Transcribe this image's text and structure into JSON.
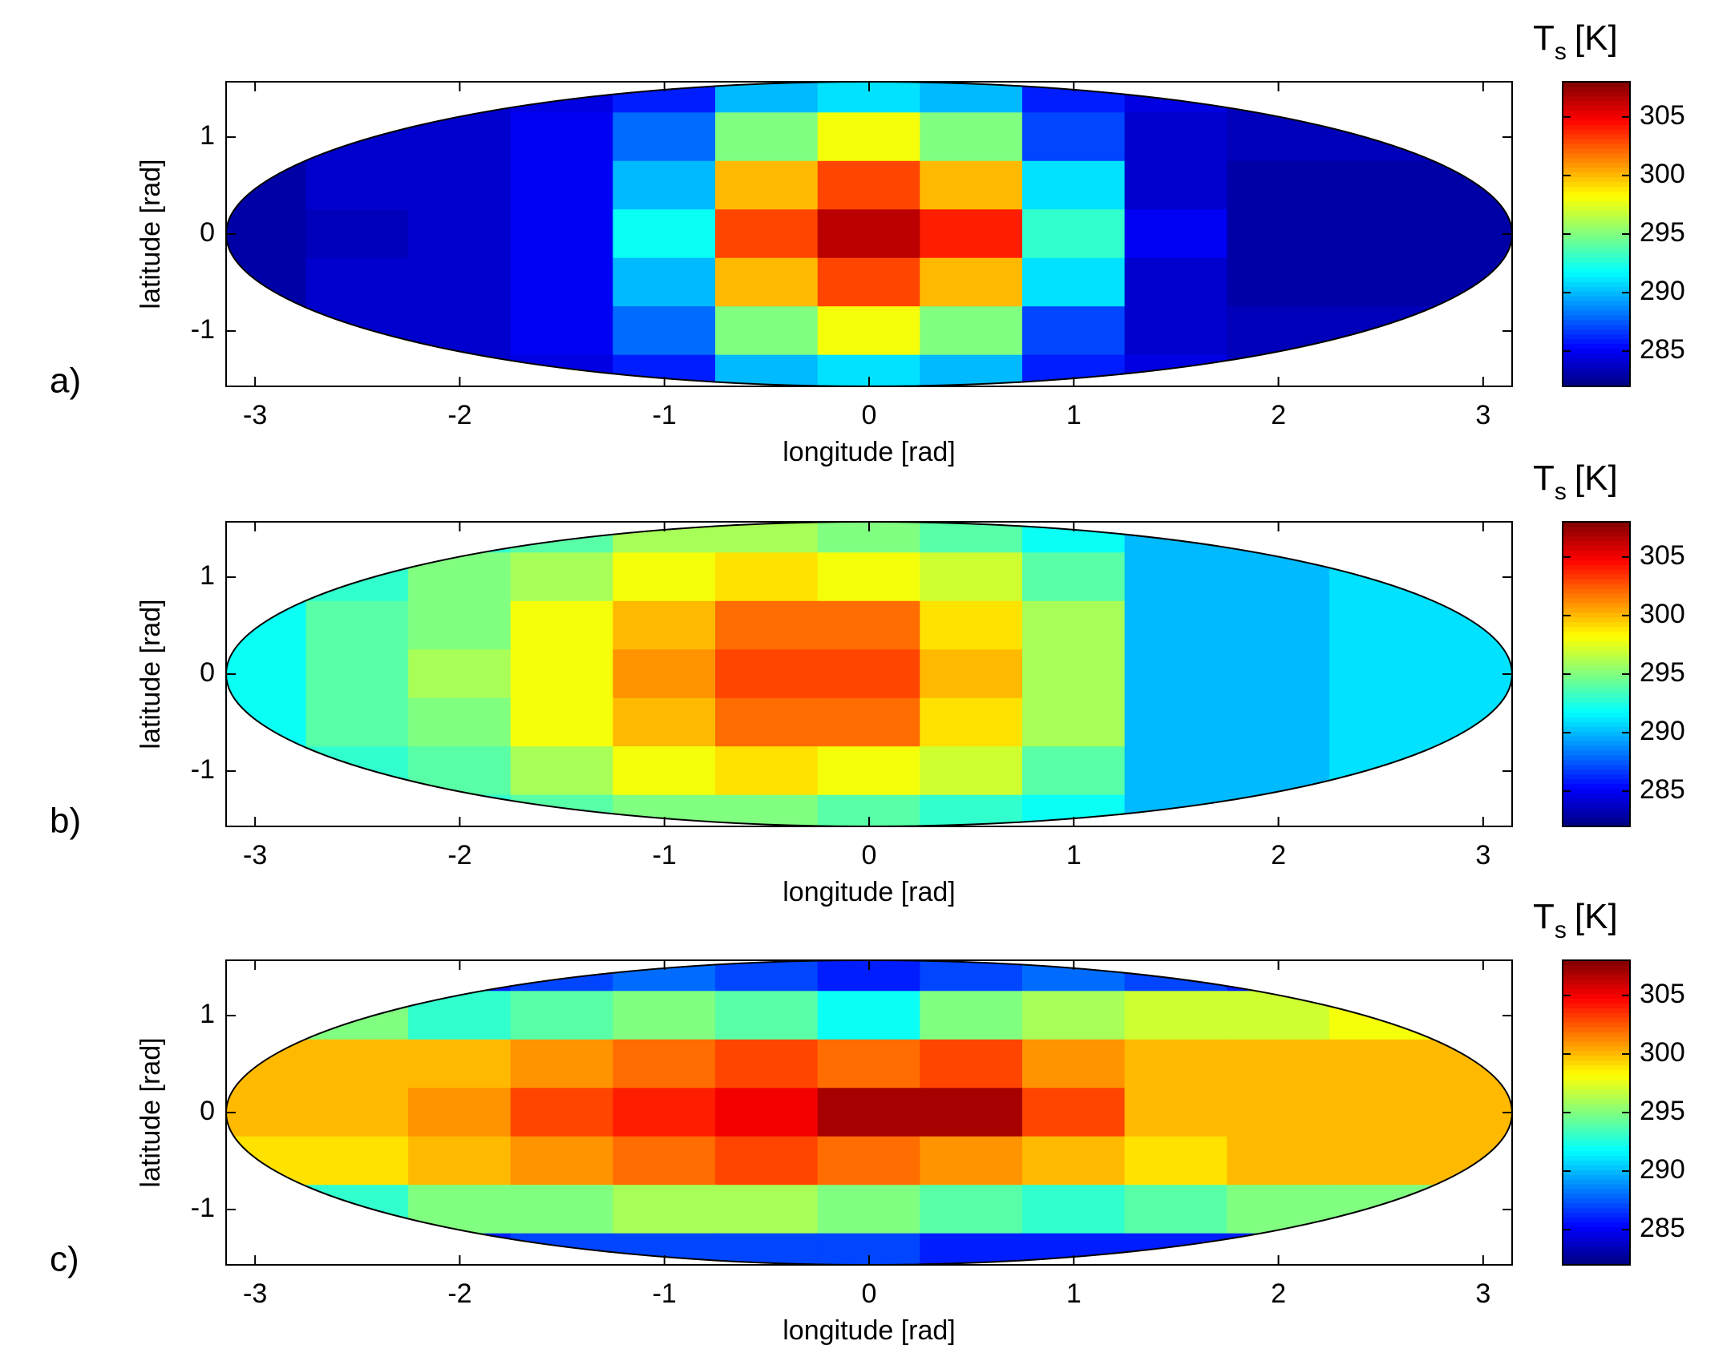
{
  "chart_data": [
    {
      "type": "contour",
      "panel_label": "a)",
      "xlabel": "longitude [rad]",
      "ylabel": "latitude [rad]",
      "colorbar_label": "T",
      "colorbar_label_subscript": "s",
      "colorbar_label_unit": "[K]",
      "colormap": "jet",
      "xlim": [
        -3.1416,
        3.1416
      ],
      "ylim": [
        -1.5708,
        1.5708
      ],
      "xticks": [
        -3,
        -2,
        -1,
        0,
        1,
        2,
        3
      ],
      "yticks": [
        -1,
        0,
        1
      ],
      "clim": [
        282,
        308
      ],
      "colorbar_ticks": [
        285,
        290,
        295,
        300,
        305
      ],
      "x": [
        -3,
        -2.5,
        -2,
        -1.5,
        -1,
        -0.5,
        0,
        0.5,
        1,
        1.5,
        2,
        2.5,
        3
      ],
      "y": [
        1.5,
        1,
        0.5,
        0,
        -0.5,
        -1,
        -1.5
      ],
      "z": [
        [
          284,
          284,
          284,
          284.5,
          286,
          290,
          291,
          290,
          286,
          284.5,
          283.5,
          283.5,
          283.5
        ],
        [
          284,
          284,
          284,
          285,
          288,
          295,
          298,
          295,
          287,
          284,
          283.5,
          283.5,
          283.5
        ],
        [
          283,
          284,
          284,
          285,
          290,
          300,
          303,
          300,
          291,
          284,
          283,
          283,
          283
        ],
        [
          283,
          283.5,
          284,
          285,
          292,
          303,
          306.5,
          304,
          293,
          285,
          283,
          283,
          283
        ],
        [
          283,
          284,
          284,
          285,
          290,
          300,
          303,
          300,
          291,
          284,
          283,
          283,
          283
        ],
        [
          284,
          284,
          284,
          285,
          288,
          295,
          298,
          295,
          287,
          284,
          283.5,
          283.5,
          283.5
        ],
        [
          284,
          284,
          284,
          284.5,
          286,
          290,
          291,
          290,
          286,
          284.5,
          283.5,
          283.5,
          283.5
        ]
      ]
    },
    {
      "type": "contour",
      "panel_label": "b)",
      "xlabel": "longitude [rad]",
      "ylabel": "latitude [rad]",
      "colorbar_label": "T",
      "colorbar_label_subscript": "s",
      "colorbar_label_unit": "[K]",
      "colormap": "jet",
      "xlim": [
        -3.1416,
        3.1416
      ],
      "ylim": [
        -1.5708,
        1.5708
      ],
      "xticks": [
        -3,
        -2,
        -1,
        0,
        1,
        2,
        3
      ],
      "yticks": [
        -1,
        0,
        1
      ],
      "clim": [
        282,
        308
      ],
      "colorbar_ticks": [
        285,
        290,
        295,
        300,
        305
      ],
      "x": [
        -3,
        -2.5,
        -2,
        -1.5,
        -1,
        -0.5,
        0,
        0.5,
        1,
        1.5,
        2,
        2.5,
        3
      ],
      "y": [
        1.5,
        1,
        0.5,
        0,
        -0.5,
        -1,
        -1.5
      ],
      "z": [
        [
          292,
          292,
          293,
          294,
          296,
          296,
          295,
          294,
          292,
          290,
          290,
          290,
          290
        ],
        [
          292,
          293,
          295,
          296,
          298,
          299,
          298,
          297,
          294,
          290,
          290,
          291,
          291
        ],
        [
          292,
          294,
          295,
          298,
          300,
          302,
          302,
          299,
          296,
          290,
          290,
          291,
          291
        ],
        [
          292,
          294,
          296,
          298,
          301,
          303,
          303,
          300,
          296,
          290,
          290,
          291,
          291
        ],
        [
          292,
          294,
          295,
          298,
          300,
          302,
          302,
          299,
          296,
          290,
          290,
          291,
          291
        ],
        [
          292,
          293,
          294,
          296,
          298,
          299,
          298,
          297,
          294,
          290,
          290,
          291,
          291
        ],
        [
          292,
          292,
          293,
          294,
          295,
          295,
          294,
          293,
          292,
          290,
          290,
          290,
          290
        ]
      ]
    },
    {
      "type": "contour",
      "panel_label": "c)",
      "xlabel": "longitude [rad]",
      "ylabel": "latitude [rad]",
      "colorbar_label": "T",
      "colorbar_label_subscript": "s",
      "colorbar_label_unit": "[K]",
      "colormap": "jet",
      "xlim": [
        -3.1416,
        3.1416
      ],
      "ylim": [
        -1.5708,
        1.5708
      ],
      "xticks": [
        -3,
        -2,
        -1,
        0,
        1,
        2,
        3
      ],
      "yticks": [
        -1,
        0,
        1
      ],
      "clim": [
        282,
        308
      ],
      "colorbar_ticks": [
        285,
        290,
        295,
        300,
        305
      ],
      "x": [
        -3,
        -2.5,
        -2,
        -1.5,
        -1,
        -0.5,
        0,
        0.5,
        1,
        1.5,
        2,
        2.5,
        3
      ],
      "y": [
        1.5,
        1,
        0.5,
        0,
        -0.5,
        -1,
        -1.5
      ],
      "z": [
        [
          286,
          286,
          286,
          287,
          288,
          287,
          286,
          287,
          288,
          287,
          286,
          286,
          286
        ],
        [
          294,
          295,
          293,
          294,
          295,
          294,
          292,
          295,
          296,
          297,
          297,
          298,
          298
        ],
        [
          300,
          300,
          300,
          301,
          302,
          303,
          302,
          303,
          301,
          300,
          300,
          300,
          300
        ],
        [
          300,
          300,
          301,
          303,
          304,
          305,
          307,
          307,
          303,
          300,
          300,
          300,
          300
        ],
        [
          299,
          299,
          300,
          301,
          302,
          303,
          302,
          301,
          300,
          299,
          300,
          300,
          300
        ],
        [
          293,
          293,
          295,
          295,
          296,
          296,
          295,
          294,
          293,
          294,
          295,
          295,
          295
        ],
        [
          286,
          286,
          286,
          287,
          287,
          287,
          287,
          286,
          286,
          286,
          286,
          286,
          286
        ]
      ]
    }
  ]
}
